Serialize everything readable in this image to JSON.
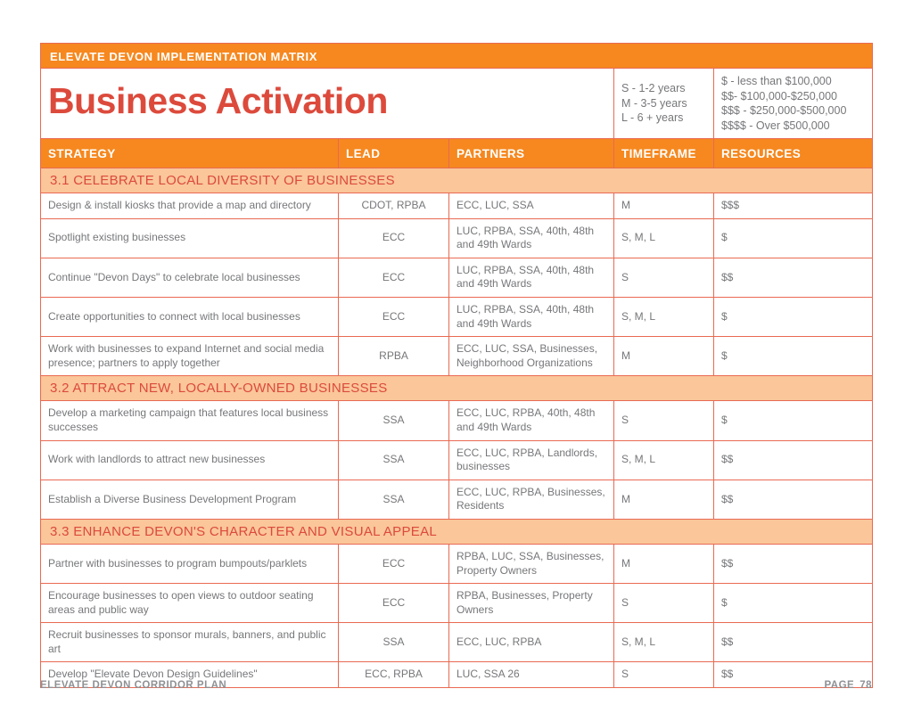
{
  "banner": {
    "title": "ELEVATE DEVON IMPLEMENTATION MATRIX"
  },
  "page_title": "Business Activation",
  "legend": {
    "timeframe": [
      "S - 1-2 years",
      "M - 3-5 years",
      "L - 6 + years"
    ],
    "resources": [
      "$ - less than $100,000",
      "$$- $100,000-$250,000",
      "$$$ - $250,000-$500,000",
      "$$$$ - Over $500,000"
    ]
  },
  "table": {
    "columns": [
      "STRATEGY",
      "LEAD",
      "PARTNERS",
      "TIMEFRAME",
      "RESOURCES"
    ],
    "sections": [
      {
        "heading": "3.1 CELEBRATE LOCAL DIVERSITY OF BUSINESSES",
        "rows": [
          {
            "strategy": "Design & install kiosks that provide a map and directory",
            "lead": "CDOT, RPBA",
            "partners": "ECC, LUC, SSA",
            "timeframe": "M",
            "resources": "$$$"
          },
          {
            "strategy": "Spotlight existing businesses",
            "lead": "ECC",
            "partners": "LUC, RPBA, SSA, 40th, 48th and 49th Wards",
            "timeframe": "S, M, L",
            "resources": "$"
          },
          {
            "strategy": "Continue \"Devon Days\" to celebrate local businesses",
            "lead": "ECC",
            "partners": "LUC, RPBA, SSA, 40th, 48th and 49th Wards",
            "timeframe": "S",
            "resources": "$$"
          },
          {
            "strategy": "Create opportunities to connect with local businesses",
            "lead": "ECC",
            "partners": "LUC, RPBA, SSA, 40th, 48th and 49th Wards",
            "timeframe": "S, M, L",
            "resources": "$"
          },
          {
            "strategy": "Work with businesses to expand Internet and social media presence; partners to apply together",
            "lead": "RPBA",
            "partners": "ECC, LUC, SSA, Businesses, Neighborhood Organizations",
            "timeframe": "M",
            "resources": "$"
          }
        ]
      },
      {
        "heading": "3.2 ATTRACT NEW, LOCALLY-OWNED BUSINESSES",
        "rows": [
          {
            "strategy": "Develop a marketing campaign that features local business successes",
            "lead": "SSA",
            "partners": "ECC, LUC, RPBA, 40th, 48th and 49th Wards",
            "timeframe": "S",
            "resources": "$"
          },
          {
            "strategy": "Work with landlords to attract new businesses",
            "lead": "SSA",
            "partners": "ECC, LUC, RPBA, Landlords, businesses",
            "timeframe": "S, M, L",
            "resources": "$$"
          },
          {
            "strategy": "Establish a Diverse Business Development Program",
            "lead": "SSA",
            "partners": "ECC, LUC, RPBA, Businesses, Residents",
            "timeframe": "M",
            "resources": "$$"
          }
        ]
      },
      {
        "heading": "3.3 ENHANCE DEVON'S CHARACTER AND VISUAL APPEAL",
        "rows": [
          {
            "strategy": "Partner with businesses to program bumpouts/parklets",
            "lead": "ECC",
            "partners": "RPBA, LUC, SSA, Businesses, Property Owners",
            "timeframe": "M",
            "resources": "$$"
          },
          {
            "strategy": "Encourage businesses to open views to outdoor seating areas and public way",
            "lead": "ECC",
            "partners": "RPBA, Businesses, Property Owners",
            "timeframe": "S",
            "resources": "$"
          },
          {
            "strategy": "Recruit businesses to sponsor murals, banners, and public art",
            "lead": "SSA",
            "partners": "ECC, LUC, RPBA",
            "timeframe": "S, M, L",
            "resources": "$$"
          },
          {
            "strategy": "Develop \"Elevate Devon Design Guidelines\"",
            "lead": "ECC, RPBA",
            "partners": "LUC, SSA 26",
            "timeframe": "S",
            "resources": "$$"
          }
        ]
      }
    ]
  },
  "footer": {
    "left": "ELEVATE DEVON CORRIDOR PLAN",
    "page_label": "PAGE",
    "page_number": "78"
  },
  "colors": {
    "header_orange": "#F6881F",
    "title_red": "#DC4A3C",
    "section_band_peach": "#FAC69A",
    "table_border_salmon": "#E96A52",
    "body_text_gray": "#76777A",
    "footer_text_gray": "#8F9194"
  }
}
